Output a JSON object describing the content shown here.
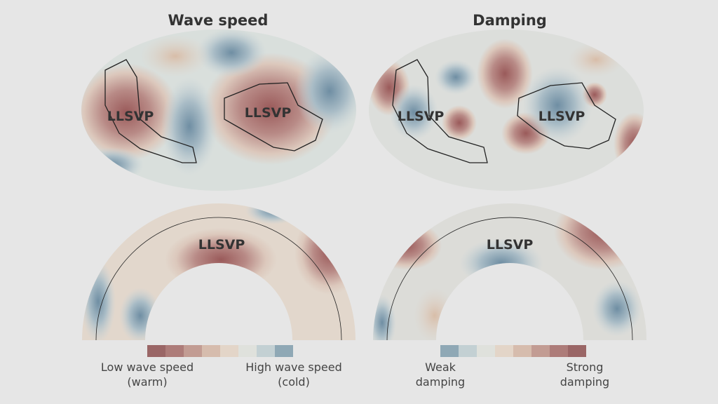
{
  "panels": [
    {
      "title": "Wave speed",
      "map_labels": [
        "LLSVP",
        "LLSVP"
      ],
      "section_label": "LLSVP",
      "legend": {
        "left": [
          "Low wave speed",
          "(warm)"
        ],
        "right": [
          "High wave speed",
          "(cold)"
        ]
      }
    },
    {
      "title": "Damping",
      "map_labels": [
        "LLSVP",
        "LLSVP"
      ],
      "section_label": "LLSVP",
      "legend": {
        "left": [
          "Weak",
          "damping"
        ],
        "right": [
          "Strong",
          "damping"
        ]
      }
    }
  ]
}
